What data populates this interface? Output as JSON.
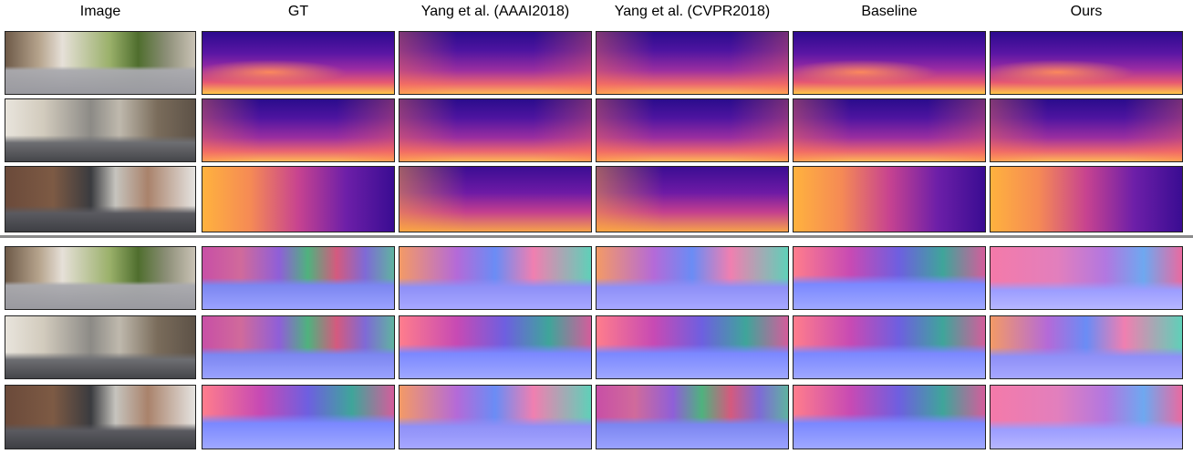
{
  "headers": {
    "image": "Image",
    "gt": "GT",
    "yang_aaai": "Yang et al. (AAAI2018)",
    "yang_cvpr": "Yang et al. (CVPR2018)",
    "baseline": "Baseline",
    "ours": "Ours"
  }
}
